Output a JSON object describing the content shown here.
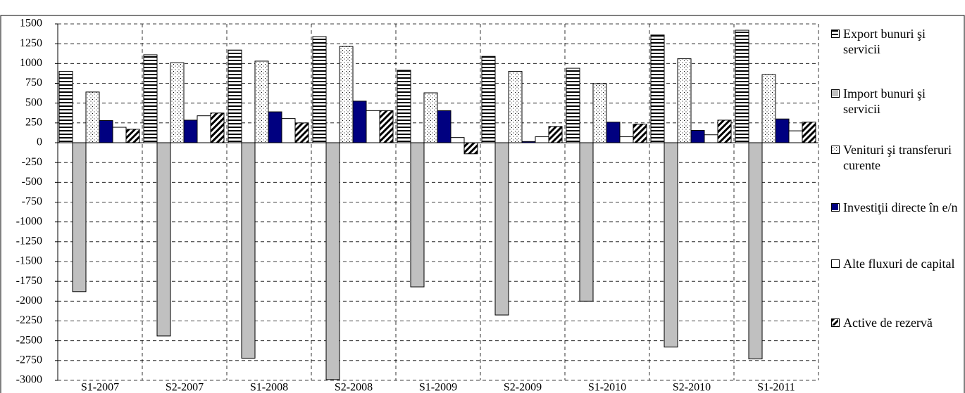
{
  "chart_data": {
    "type": "bar",
    "categories": [
      "S1-2007",
      "S2-2007",
      "S1-2008",
      "S2-2008",
      "S1-2009",
      "S2-2009",
      "S1-2010",
      "S2-2010",
      "S1-2011"
    ],
    "series": [
      {
        "name": "Export bunuri şi servicii",
        "color": "#ffffff",
        "hatch": "horizontal",
        "values": [
          900,
          1110,
          1170,
          1340,
          915,
          1090,
          940,
          1360,
          1420
        ]
      },
      {
        "name": "Import bunuri şi servicii",
        "color": "#c0c0c0",
        "hatch": "none",
        "values": [
          -1880,
          -2440,
          -2720,
          -2990,
          -1820,
          -2175,
          -2000,
          -2580,
          -2730
        ]
      },
      {
        "name": "Venituri şi transferuri curente",
        "color": "#ffffff",
        "hatch": "dots",
        "values": [
          640,
          1010,
          1030,
          1215,
          630,
          900,
          745,
          1060,
          860
        ]
      },
      {
        "name": "Investiţii directe în e/n",
        "color": "#000080",
        "hatch": "none",
        "values": [
          280,
          285,
          390,
          525,
          405,
          15,
          260,
          155,
          300
        ]
      },
      {
        "name": "Alte fluxuri de capital",
        "color": "#ffffff",
        "hatch": "none",
        "values": [
          195,
          340,
          305,
          405,
          65,
          75,
          75,
          100,
          150
        ]
      },
      {
        "name": "Active de rezervă",
        "color": "#ffffff",
        "hatch": "diagonal",
        "values": [
          170,
          375,
          250,
          405,
          -140,
          205,
          235,
          285,
          260
        ]
      }
    ],
    "ylim": [
      -3000,
      1500
    ],
    "yticks": [
      -3000,
      -2750,
      -2500,
      -2250,
      -2000,
      -1750,
      -1500,
      -1250,
      -1000,
      -750,
      -500,
      -250,
      0,
      250,
      500,
      750,
      1000,
      1250,
      1500
    ],
    "grid": true,
    "legend": "right"
  }
}
